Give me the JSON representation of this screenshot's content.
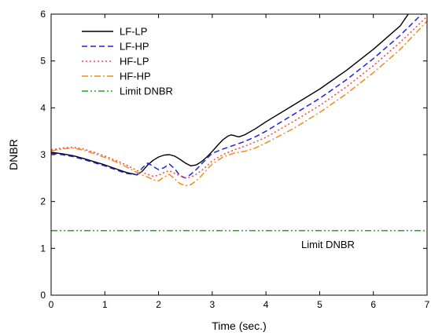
{
  "chart_data": {
    "type": "line",
    "title": "",
    "xlabel": "Time (sec.)",
    "ylabel": "DNBR",
    "xlim": [
      0,
      7
    ],
    "ylim": [
      0,
      6
    ],
    "xticks": [
      "0",
      "1",
      "2",
      "3",
      "4",
      "5",
      "6",
      "7"
    ],
    "yticks": [
      "0",
      "1",
      "2",
      "3",
      "4",
      "5",
      "6"
    ],
    "grid": false,
    "legend_position": "top-left",
    "annotation": "Limit DNBR",
    "series": [
      {
        "name": "LF-LP",
        "color": "#000000",
        "style": "solid",
        "x": [
          0,
          0.2,
          0.4,
          0.6,
          0.8,
          1.0,
          1.2,
          1.4,
          1.6,
          1.7,
          1.8,
          1.9,
          2.0,
          2.1,
          2.2,
          2.3,
          2.4,
          2.5,
          2.6,
          2.7,
          2.8,
          2.9,
          3.0,
          3.1,
          3.2,
          3.3,
          3.35,
          3.4,
          3.45,
          3.5,
          3.6,
          3.8,
          4.0,
          4.5,
          5.0,
          5.5,
          6.0,
          6.5,
          6.65
        ],
        "y": [
          3.05,
          3.02,
          2.98,
          2.92,
          2.85,
          2.78,
          2.7,
          2.62,
          2.57,
          2.65,
          2.78,
          2.88,
          2.95,
          2.99,
          3.0,
          2.97,
          2.9,
          2.82,
          2.76,
          2.78,
          2.85,
          2.95,
          3.07,
          3.2,
          3.32,
          3.4,
          3.42,
          3.41,
          3.39,
          3.38,
          3.42,
          3.55,
          3.7,
          4.05,
          4.4,
          4.8,
          5.25,
          5.75,
          6.0
        ]
      },
      {
        "name": "LF-HP",
        "color": "#2020e0",
        "style": "dashed",
        "x": [
          0,
          0.2,
          0.4,
          0.6,
          0.8,
          1.0,
          1.2,
          1.4,
          1.6,
          1.7,
          1.8,
          1.9,
          2.0,
          2.1,
          2.2,
          2.3,
          2.4,
          2.5,
          2.6,
          2.7,
          2.8,
          2.9,
          3.0,
          3.2,
          3.4,
          3.5,
          3.6,
          3.8,
          4.0,
          4.5,
          5.0,
          5.5,
          6.0,
          6.5,
          6.9
        ],
        "y": [
          3.03,
          3.0,
          2.96,
          2.9,
          2.83,
          2.76,
          2.68,
          2.6,
          2.57,
          2.72,
          2.82,
          2.75,
          2.68,
          2.72,
          2.8,
          2.7,
          2.55,
          2.5,
          2.58,
          2.68,
          2.8,
          2.92,
          3.03,
          3.12,
          3.2,
          3.24,
          3.28,
          3.38,
          3.5,
          3.85,
          4.2,
          4.6,
          5.05,
          5.55,
          6.0
        ]
      },
      {
        "name": "HF-LP",
        "color": "#ff4040",
        "style": "dotted",
        "x": [
          0,
          0.2,
          0.4,
          0.6,
          0.8,
          1.0,
          1.2,
          1.4,
          1.6,
          1.7,
          1.8,
          1.9,
          2.0,
          2.1,
          2.2,
          2.3,
          2.4,
          2.5,
          2.6,
          2.7,
          2.8,
          2.9,
          3.0,
          3.2,
          3.4,
          3.6,
          3.8,
          4.0,
          4.5,
          5.0,
          5.5,
          6.0,
          6.5,
          7.0
        ],
        "y": [
          3.1,
          3.14,
          3.16,
          3.12,
          3.05,
          2.97,
          2.88,
          2.78,
          2.66,
          2.62,
          2.58,
          2.54,
          2.56,
          2.62,
          2.66,
          2.6,
          2.55,
          2.5,
          2.52,
          2.58,
          2.66,
          2.76,
          2.87,
          3.0,
          3.1,
          3.18,
          3.27,
          3.37,
          3.7,
          4.05,
          4.45,
          4.9,
          5.4,
          5.95
        ]
      },
      {
        "name": "HF-HP",
        "color": "#f08c1e",
        "style": "dash-dot",
        "x": [
          0,
          0.2,
          0.4,
          0.6,
          0.8,
          1.0,
          1.2,
          1.4,
          1.6,
          1.7,
          1.8,
          1.9,
          2.0,
          2.1,
          2.2,
          2.3,
          2.4,
          2.5,
          2.6,
          2.7,
          2.8,
          2.9,
          3.0,
          3.2,
          3.4,
          3.5,
          3.6,
          3.8,
          4.0,
          4.5,
          5.0,
          5.5,
          6.0,
          6.5,
          7.0
        ],
        "y": [
          3.08,
          3.12,
          3.14,
          3.1,
          3.02,
          2.94,
          2.85,
          2.74,
          2.62,
          2.56,
          2.52,
          2.46,
          2.44,
          2.52,
          2.58,
          2.48,
          2.38,
          2.34,
          2.36,
          2.44,
          2.55,
          2.68,
          2.8,
          2.95,
          3.03,
          3.05,
          3.07,
          3.14,
          3.25,
          3.55,
          3.9,
          4.3,
          4.75,
          5.25,
          5.85
        ]
      },
      {
        "name": "Limit DNBR",
        "color": "#22a822",
        "style": "dash-dot-dot",
        "x": [
          0,
          7
        ],
        "y": [
          1.38,
          1.38
        ]
      }
    ]
  }
}
